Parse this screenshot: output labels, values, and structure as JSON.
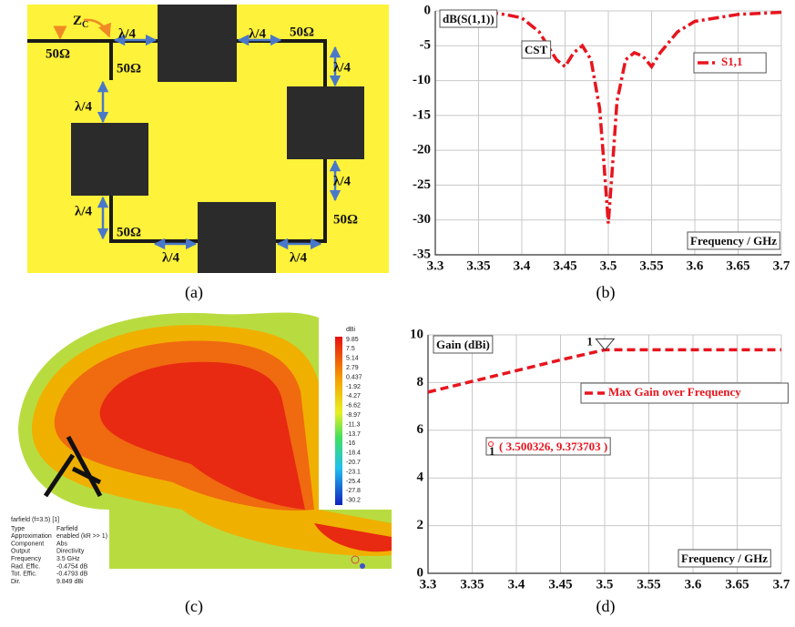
{
  "chart_data": [
    {
      "type": "line",
      "y_label": "dB(S(1,1))",
      "x_label": "Frequency / GHz",
      "annotation": "CST",
      "grid": true,
      "x": [
        3.36,
        3.38,
        3.4,
        3.42,
        3.43,
        3.44,
        3.45,
        3.46,
        3.47,
        3.48,
        3.49,
        3.495,
        3.5,
        3.505,
        3.51,
        3.52,
        3.53,
        3.54,
        3.55,
        3.56,
        3.58,
        3.6,
        3.65,
        3.7
      ],
      "series": [
        {
          "name": "S1,1",
          "color": "#e8141e",
          "line_style": "dash-dot",
          "values": [
            -0.2,
            -0.5,
            -1,
            -3,
            -5,
            -7,
            -8,
            -6,
            -5,
            -7,
            -14,
            -22,
            -30.5,
            -22,
            -13,
            -7,
            -6,
            -6.5,
            -8,
            -6,
            -3,
            -1.5,
            -0.5,
            -0.2
          ]
        }
      ],
      "xlim": [
        3.3,
        3.7
      ],
      "xticks": [
        3.3,
        3.35,
        3.4,
        3.45,
        3.5,
        3.55,
        3.6,
        3.65,
        3.7
      ],
      "ylim": [
        -35,
        0
      ],
      "yticks": [
        0,
        -5,
        -10,
        -15,
        -20,
        -25,
        -30,
        -35
      ]
    },
    {
      "type": "line",
      "y_label": "Gain (dBi)",
      "x_label": "Frequency / GHz",
      "annotation": "( 3.500326, 9.373703 )",
      "grid": true,
      "x": [
        3.3,
        3.35,
        3.4,
        3.45,
        3.5,
        3.55,
        3.6,
        3.65,
        3.7
      ],
      "series": [
        {
          "name": "Max Gain over Frequency",
          "color": "#e8141e",
          "line_style": "dashed",
          "values": [
            7.6,
            8.05,
            8.5,
            8.95,
            9.373703,
            9.373703,
            9.373703,
            9.373703,
            9.373703
          ]
        }
      ],
      "markers": [
        {
          "x": 3.500326,
          "y": 9.373703,
          "label": "1"
        }
      ],
      "xlim": [
        3.3,
        3.7
      ],
      "xticks": [
        3.3,
        3.35,
        3.4,
        3.45,
        3.5,
        3.55,
        3.6,
        3.65,
        3.7
      ],
      "ylim": [
        0,
        10
      ],
      "yticks": [
        0,
        2,
        4,
        6,
        8,
        10
      ]
    }
  ],
  "diagram": {
    "zc": "Z",
    "zc_sub": "C",
    "quarter_wave_labels": [
      "λ/4",
      "λ/4",
      "λ/4",
      "λ/4",
      "λ/4",
      "λ/4",
      "λ/4",
      "λ/4"
    ],
    "impedance_labels": [
      "50Ω",
      "50Ω",
      "50Ω",
      "50Ω",
      "50Ω"
    ]
  },
  "farfield": {
    "colorbar_title": "dBi",
    "colorbar_ticks": [
      "9.85",
      "7.5",
      "5.14",
      "2.79",
      "0.437",
      "-1.92",
      "-4.27",
      "-6.62",
      "-8.97",
      "-11.3",
      "-13.7",
      "-16",
      "-18.4",
      "-20.7",
      "-23.1",
      "-25.4",
      "-27.8",
      "-30.2"
    ],
    "info_title": "farfield (f=3.5) [1]",
    "info_rows": [
      [
        "Type",
        "Farfield"
      ],
      [
        "Approximation",
        "enabled (kR >> 1)"
      ],
      [
        "Component",
        "Abs"
      ],
      [
        "Output",
        "Directivity"
      ],
      [
        "Frequency",
        "3.5 GHz"
      ],
      [
        "Rad. Effic.",
        "-0.4754 dB"
      ],
      [
        "Tot. Effic.",
        "-0.4793 dB"
      ],
      [
        "Dir.",
        "9.849 dBi"
      ]
    ]
  },
  "captions": [
    "(a)",
    "(b)",
    "(c)",
    "(d)"
  ]
}
